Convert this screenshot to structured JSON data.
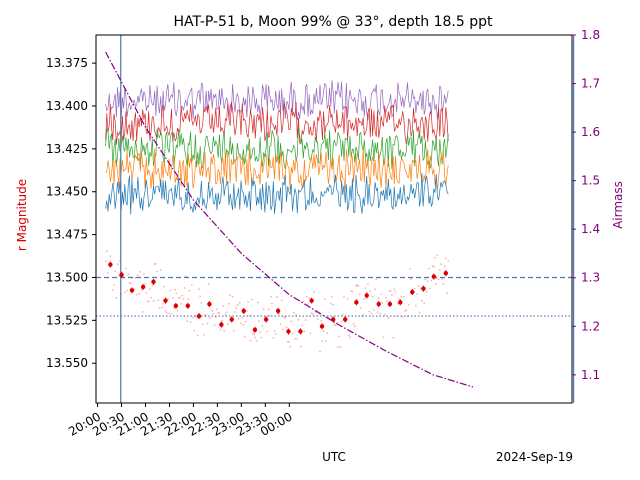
{
  "chart_data": {
    "type": "scatter",
    "title": "HAT-P-51 b, Moon 99% @ 33°, depth 18.5 ppt",
    "xlabel": "UTC",
    "date_label": "2024-Sep-19",
    "ylabel_left": "r Magnitude",
    "ylabel_right": "Airmass",
    "x_ticks": [
      "20:00",
      "20:30",
      "21:00",
      "21:30",
      "22:00",
      "22:30",
      "23:00",
      "23:30",
      "00:00"
    ],
    "y_left_ticks": [
      "13.375",
      "13.400",
      "13.425",
      "13.450",
      "13.475",
      "13.500",
      "13.525",
      "13.550"
    ],
    "y_right_ticks": [
      "1.1",
      "1.2",
      "1.3",
      "1.4",
      "1.5",
      "1.6",
      "1.7",
      "1.8"
    ],
    "x_range_min": [
      -2,
      594
    ],
    "y_left_range": [
      13.3586,
      13.5732
    ],
    "y_right_range": [
      1.042,
      1.8
    ],
    "grid": false,
    "vertical_lines_min": [
      29,
      596
    ],
    "reference_lines": [
      {
        "y": 13.5,
        "style": "dashed",
        "color": "#4a78b0"
      },
      {
        "y": 13.5225,
        "style": "dotted",
        "color": "#4a78b0"
      }
    ],
    "binned_points": {
      "color": "#dd0000",
      "x_min": [
        16,
        30,
        43,
        57,
        70,
        85,
        98,
        113,
        127,
        140,
        155,
        168,
        183,
        197,
        211,
        226,
        239,
        254,
        268,
        281,
        295,
        310,
        324,
        337,
        352,
        366,
        379,
        394,
        408,
        421,
        436
      ],
      "y": [
        13.4925,
        13.4985,
        13.5075,
        13.5055,
        13.5025,
        13.5135,
        13.5165,
        13.5165,
        13.5225,
        13.5155,
        13.5275,
        13.5245,
        13.5195,
        13.5305,
        13.5245,
        13.5195,
        13.5315,
        13.5315,
        13.5135,
        13.5285,
        13.5245,
        13.5245,
        13.5145,
        13.5105,
        13.5155,
        13.5155,
        13.5145,
        13.5085,
        13.5065,
        13.4995,
        13.4975
      ]
    },
    "airmass_curve": {
      "color": "#800080",
      "style": "dashdot",
      "x_min": [
        10,
        60,
        120,
        180,
        240,
        300,
        360,
        420,
        470
      ],
      "y": [
        1.765,
        1.61,
        1.46,
        1.35,
        1.265,
        1.205,
        1.15,
        1.1,
        1.075
      ]
    },
    "comparison_stars": [
      {
        "color": "#9467bd",
        "center": 13.397
      },
      {
        "color": "#d62728",
        "center": 13.41
      },
      {
        "color": "#2ca02c",
        "center": 13.425
      },
      {
        "color": "#ff7f0e",
        "center": 13.437
      },
      {
        "color": "#1f77b4",
        "center": 13.451
      }
    ]
  }
}
